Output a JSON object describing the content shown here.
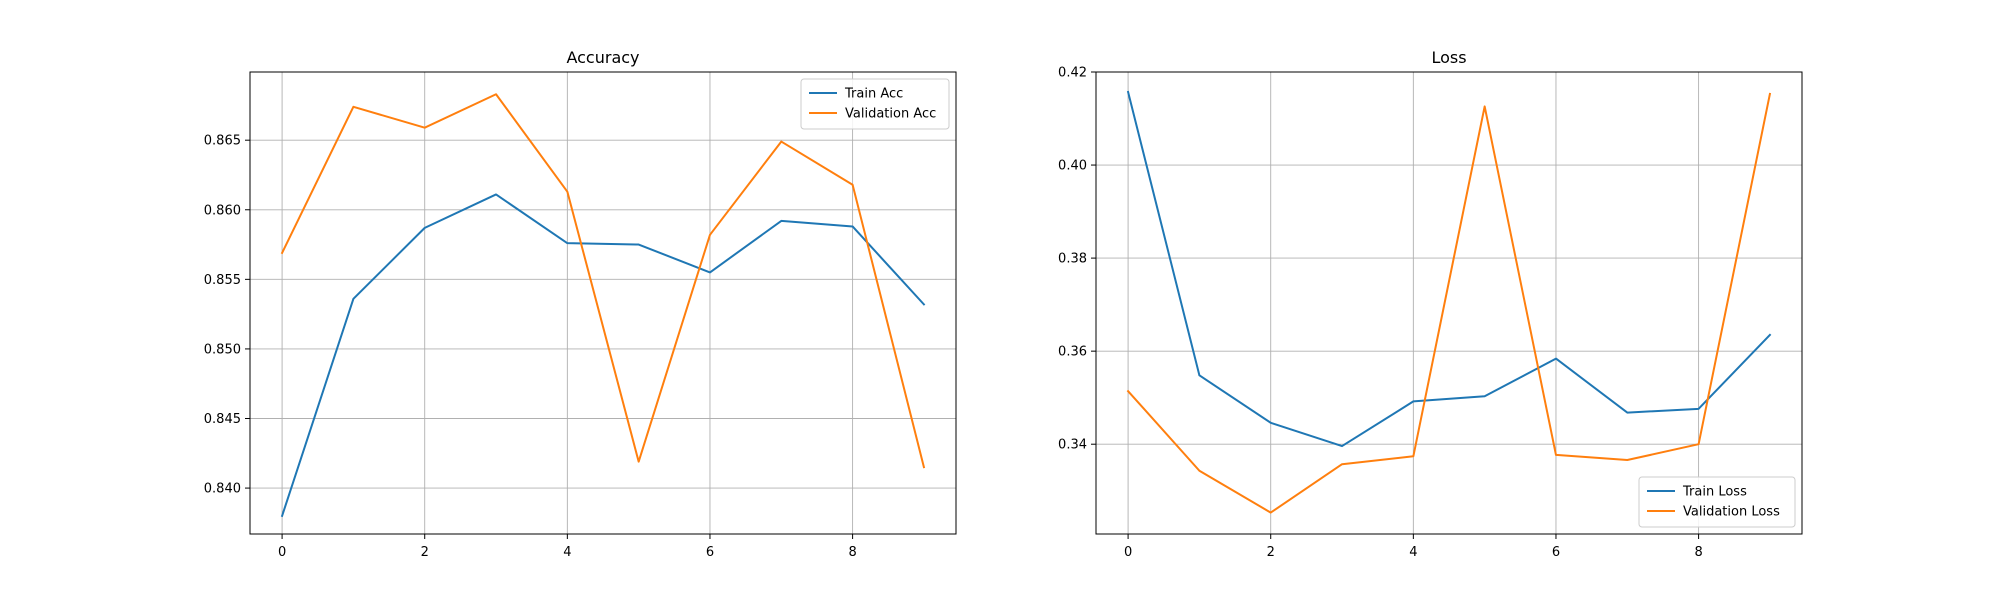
{
  "chart_data": [
    {
      "type": "line",
      "title": "Accuracy",
      "xlabel": "",
      "ylabel": "",
      "x": [
        0,
        1,
        2,
        3,
        4,
        5,
        6,
        7,
        8,
        9
      ],
      "xticks": [
        0,
        2,
        4,
        6,
        8
      ],
      "xtick_labels": [
        "0",
        "2",
        "4",
        "6",
        "8"
      ],
      "xlim": [
        -0.45,
        9.45
      ],
      "ylim": [
        0.8367,
        0.8699
      ],
      "yticks": [
        0.84,
        0.845,
        0.85,
        0.855,
        0.86,
        0.865
      ],
      "ytick_labels": [
        "0.840",
        "0.845",
        "0.850",
        "0.855",
        "0.860",
        "0.865"
      ],
      "grid": true,
      "legend_position": "upper right",
      "series": [
        {
          "name": "Train Acc",
          "color": "#1f77b4",
          "values": [
            0.838,
            0.8536,
            0.8587,
            0.8611,
            0.8576,
            0.8575,
            0.8555,
            0.8592,
            0.8588,
            0.8532
          ]
        },
        {
          "name": "Validation Acc",
          "color": "#ff7f0e",
          "values": [
            0.8569,
            0.8674,
            0.8659,
            0.8683,
            0.8613,
            0.8419,
            0.8582,
            0.8649,
            0.8618,
            0.8415
          ]
        }
      ]
    },
    {
      "type": "line",
      "title": "Loss",
      "xlabel": "",
      "ylabel": "",
      "x": [
        0,
        1,
        2,
        3,
        4,
        5,
        6,
        7,
        8,
        9
      ],
      "xticks": [
        0,
        2,
        4,
        6,
        8
      ],
      "xtick_labels": [
        "0",
        "2",
        "4",
        "6",
        "8"
      ],
      "xlim": [
        -0.45,
        9.45
      ],
      "ylim": [
        0.3207,
        0.42
      ],
      "yticks": [
        0.34,
        0.36,
        0.38,
        0.4,
        0.42
      ],
      "ytick_labels": [
        "0.34",
        "0.36",
        "0.38",
        "0.40",
        "0.42"
      ],
      "grid": true,
      "legend_position": "lower right",
      "series": [
        {
          "name": "Train Loss",
          "color": "#1f77b4",
          "values": [
            0.4157,
            0.3548,
            0.3446,
            0.3396,
            0.3492,
            0.3503,
            0.3584,
            0.3468,
            0.3476,
            0.3635
          ]
        },
        {
          "name": "Validation Loss",
          "color": "#ff7f0e",
          "values": [
            0.3514,
            0.3343,
            0.3253,
            0.3357,
            0.3374,
            0.4126,
            0.3377,
            0.3366,
            0.34,
            0.4153
          ]
        }
      ]
    }
  ]
}
